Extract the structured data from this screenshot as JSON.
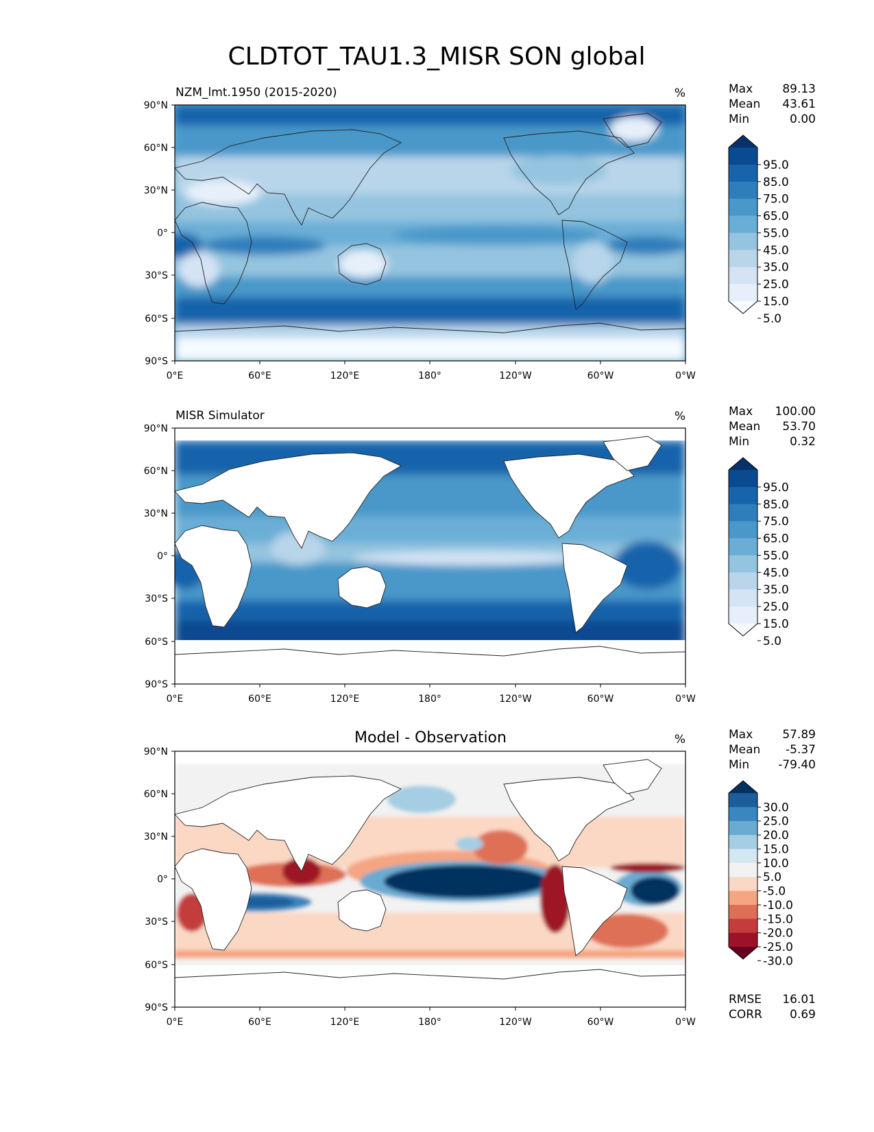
{
  "figure": {
    "title": "CLDTOT_TAU1.3_MISR SON global"
  },
  "axes": {
    "lat_ticks": [
      "90°N",
      "60°N",
      "30°N",
      "0°",
      "30°S",
      "60°S",
      "90°S"
    ],
    "lon_ticks": [
      "0°E",
      "60°E",
      "120°E",
      "180°",
      "120°W",
      "60°W",
      "0°W"
    ]
  },
  "panels": [
    {
      "title": "NZM_lmt.1950 (2015-2020)",
      "title_style": "left",
      "units": "%",
      "stats": [
        {
          "label": "Max",
          "value": "89.13"
        },
        {
          "label": "Mean",
          "value": "43.61"
        },
        {
          "label": "Min",
          "value": "0.00"
        }
      ],
      "colorbar": {
        "labels": [
          "95.0",
          "85.0",
          "75.0",
          "65.0",
          "55.0",
          "45.0",
          "35.0",
          "25.0",
          "15.0",
          "5.0"
        ],
        "colors": [
          "#08306b",
          "#0a4a90",
          "#1764ab",
          "#2e7ebc",
          "#4a98c9",
          "#6aaed6",
          "#94c4df",
          "#b8d5ea",
          "#d4e4f4",
          "#e7f0fa",
          "#f7fbff"
        ]
      }
    },
    {
      "title": "MISR Simulator",
      "title_style": "left",
      "units": "%",
      "stats": [
        {
          "label": "Max",
          "value": "100.00"
        },
        {
          "label": "Mean",
          "value": "53.70"
        },
        {
          "label": "Min",
          "value": "0.32"
        }
      ],
      "colorbar": {
        "labels": [
          "95.0",
          "85.0",
          "75.0",
          "65.0",
          "55.0",
          "45.0",
          "35.0",
          "25.0",
          "15.0",
          "5.0"
        ],
        "colors": [
          "#08306b",
          "#0a4a90",
          "#1764ab",
          "#2e7ebc",
          "#4a98c9",
          "#6aaed6",
          "#94c4df",
          "#b8d5ea",
          "#d4e4f4",
          "#e7f0fa",
          "#f7fbff"
        ]
      }
    },
    {
      "title": "Model - Observation",
      "title_style": "center",
      "units": "%",
      "stats": [
        {
          "label": "Max",
          "value": "57.89"
        },
        {
          "label": "Mean",
          "value": "-5.37"
        },
        {
          "label": "Min",
          "value": "-79.40"
        }
      ],
      "colorbar": {
        "labels": [
          "30.0",
          "25.0",
          "20.0",
          "15.0",
          "10.0",
          "5.0",
          "-5.0",
          "-10.0",
          "-15.0",
          "-20.0",
          "-25.0",
          "-30.0"
        ],
        "colors": [
          "#053061",
          "#1c5d9a",
          "#3a87bf",
          "#6aabd1",
          "#a5cde3",
          "#d5e7f1",
          "#f2f2f2",
          "#fbd8c4",
          "#f4a582",
          "#de6f57",
          "#c43c3c",
          "#9d1228",
          "#67001f"
        ]
      },
      "footer": [
        {
          "label": "RMSE",
          "value": "16.01"
        },
        {
          "label": "CORR",
          "value": "0.69"
        }
      ]
    }
  ]
}
